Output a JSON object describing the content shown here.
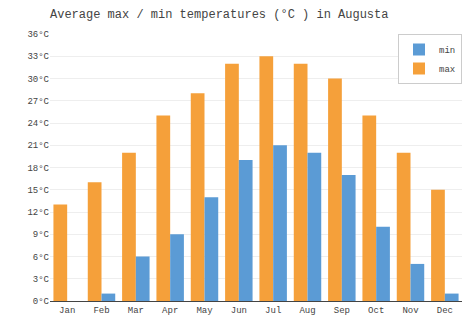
{
  "chart_data": {
    "type": "bar",
    "title": "Average max / min temperatures (°C ) in Augusta",
    "categories": [
      "Jan",
      "Feb",
      "Mar",
      "Apr",
      "May",
      "Jun",
      "Jul",
      "Aug",
      "Sep",
      "Oct",
      "Nov",
      "Dec"
    ],
    "series": [
      {
        "name": "max",
        "color": "#f5a03a",
        "values": [
          13,
          16,
          20,
          25,
          28,
          32,
          33,
          32,
          30,
          25,
          20,
          15
        ]
      },
      {
        "name": "min",
        "color": "#5b9bd5",
        "values": [
          0,
          1,
          6,
          9,
          14,
          19,
          21,
          20,
          17,
          10,
          5,
          1
        ]
      }
    ],
    "ylim": [
      0,
      36
    ],
    "yticks": [
      {
        "value": 0,
        "label": "0°C"
      },
      {
        "value": 3,
        "label": "3°C"
      },
      {
        "value": 6,
        "label": "6°C"
      },
      {
        "value": 9,
        "label": "9°C"
      },
      {
        "value": 12,
        "label": "12°C"
      },
      {
        "value": 15,
        "label": "15°C"
      },
      {
        "value": 18,
        "label": "18°C"
      },
      {
        "value": 21,
        "label": "21°C"
      },
      {
        "value": 24,
        "label": "24°C"
      },
      {
        "value": 27,
        "label": "27°C"
      },
      {
        "value": 30,
        "label": "30°C"
      },
      {
        "value": 33,
        "label": "33°C"
      },
      {
        "value": 36,
        "label": "36°C"
      }
    ],
    "grid": true,
    "legend": "upper right"
  }
}
